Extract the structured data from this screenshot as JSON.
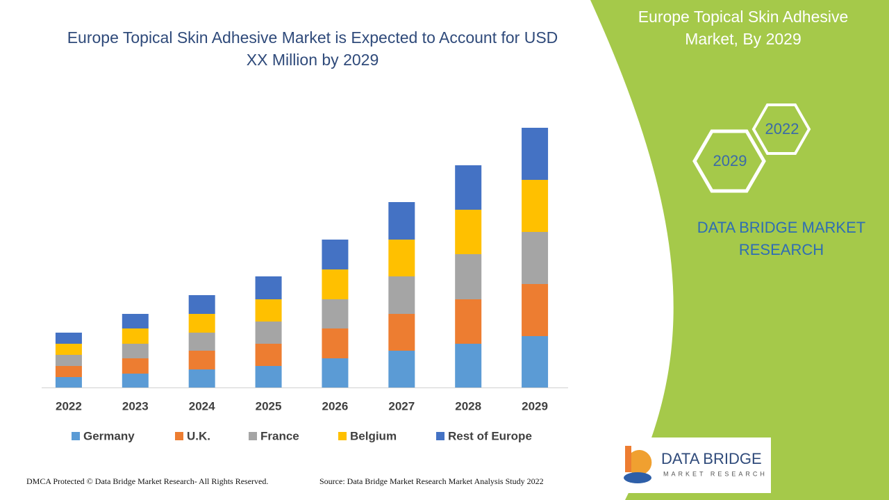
{
  "chart_data": {
    "type": "stacked_bar",
    "title": "Europe Topical Skin Adhesive Market is Expected to Account for USD XX Million by 2029",
    "categories": [
      "2022",
      "2023",
      "2024",
      "2025",
      "2026",
      "2027",
      "2028",
      "2029"
    ],
    "series": [
      {
        "name": "Germany",
        "color": "#5b9bd5",
        "values": [
          15,
          20,
          26,
          31,
          42,
          53,
          63,
          74
        ]
      },
      {
        "name": "U.K.",
        "color": "#ed7d31",
        "values": [
          16,
          22,
          27,
          32,
          43,
          53,
          64,
          75
        ]
      },
      {
        "name": "France",
        "color": "#a5a5a5",
        "values": [
          16,
          21,
          26,
          32,
          42,
          54,
          65,
          75
        ]
      },
      {
        "name": "Belgium",
        "color": "#ffc000",
        "values": [
          16,
          22,
          27,
          32,
          43,
          53,
          64,
          75
        ]
      },
      {
        "name": "Rest of Europe",
        "color": "#4472c4",
        "values": [
          16,
          21,
          27,
          33,
          43,
          54,
          64,
          75
        ]
      }
    ],
    "ylim": [
      0,
      400
    ],
    "legend": "bottom"
  },
  "panel": {
    "title": "Europe Topical Skin Adhesive Market, By 2029",
    "hex_front": "2029",
    "hex_back": "2022",
    "brand": "DATA BRIDGE MARKET RESEARCH"
  },
  "logo": {
    "name": "DATA BRIDGE",
    "tagline": "MARKET RESEARCH"
  },
  "footer": {
    "left": "DMCA Protected © Data Bridge Market Research- All Rights Reserved.",
    "right": "Source: Data Bridge Market Research Market Analysis Study 2022"
  }
}
